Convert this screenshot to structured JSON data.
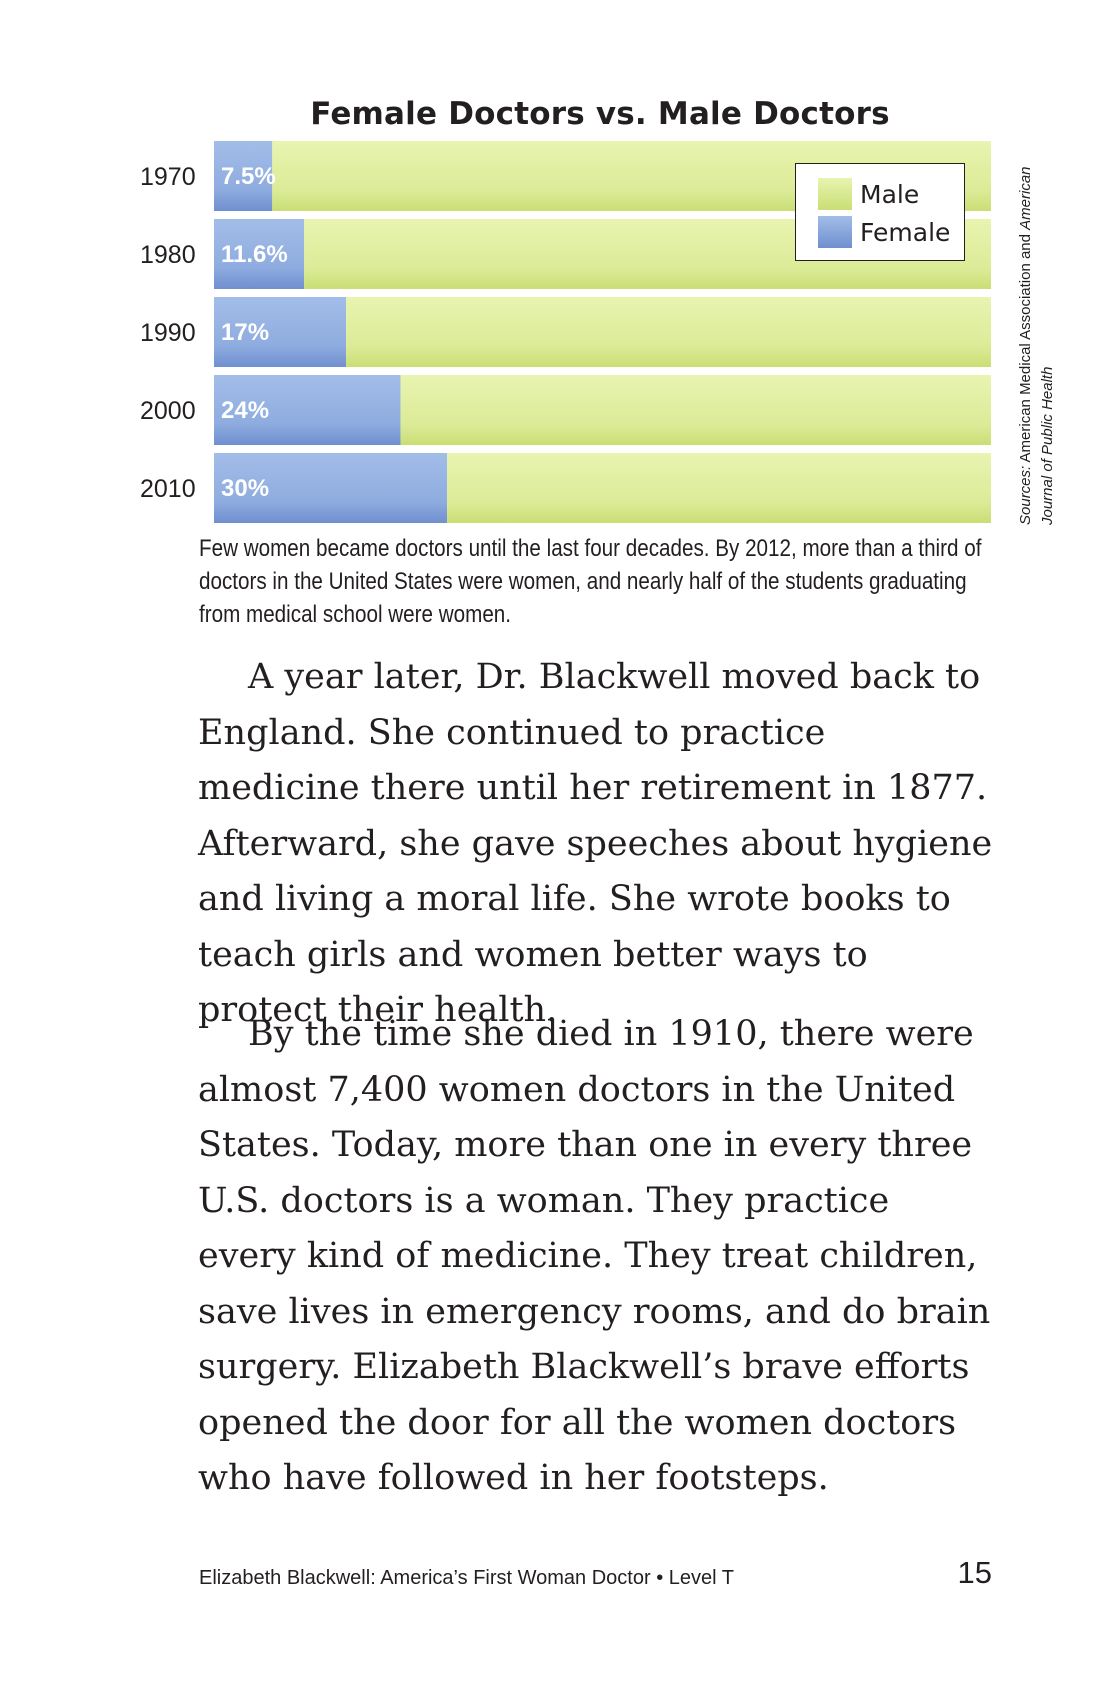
{
  "chart_data": {
    "type": "bar",
    "orientation": "horizontal",
    "stacked": true,
    "percent_stacked": true,
    "title": "Female Doctors vs. Male Doctors",
    "categories": [
      "1970",
      "1980",
      "1990",
      "2000",
      "2010"
    ],
    "series": [
      {
        "name": "Female",
        "values": [
          7.5,
          11.6,
          17,
          24,
          30
        ],
        "labels": [
          "7.5%",
          "11.6%",
          "17%",
          "24%",
          "30%"
        ],
        "color": "#8eacdf"
      },
      {
        "name": "Male",
        "values": [
          92.5,
          88.4,
          83,
          76,
          70
        ],
        "color": "#e0ee9e"
      }
    ],
    "xlim": [
      0,
      100
    ],
    "legend_position": "top-right",
    "legend": [
      {
        "label": "Male",
        "color": "#e0ee9e"
      },
      {
        "label": "Female",
        "color": "#8eacdf"
      }
    ],
    "source": {
      "label": "Sources:",
      "text": " American Medical Association and ",
      "italic_text": "American Journal of Public Health"
    }
  },
  "caption": "Few women became doctors until the last four decades. By 2012, more than a third of doctors in the United States were women, and nearly half of the students graduating from medical school were women.",
  "paragraphs": [
    "A year later, Dr. Blackwell moved back to England. She continued to practice medicine there until her retirement in 1877. Afterward, she gave speeches about hygiene and living a moral life. She wrote books to teach girls and women better ways to protect their health.",
    "By the time she died in 1910, there were almost 7,400 women doctors in the United States. Today, more than one in every three U.S. doctors is a woman. They practice every kind of medicine. They treat children, save lives in emergency rooms, and do brain surgery. Elizabeth Blackwell’s brave efforts opened the door for all the women doctors who have followed in her footsteps."
  ],
  "footer": {
    "book_title": "Elizabeth Blackwell: America’s First Woman Doctor • Level T",
    "page_number": "15"
  }
}
